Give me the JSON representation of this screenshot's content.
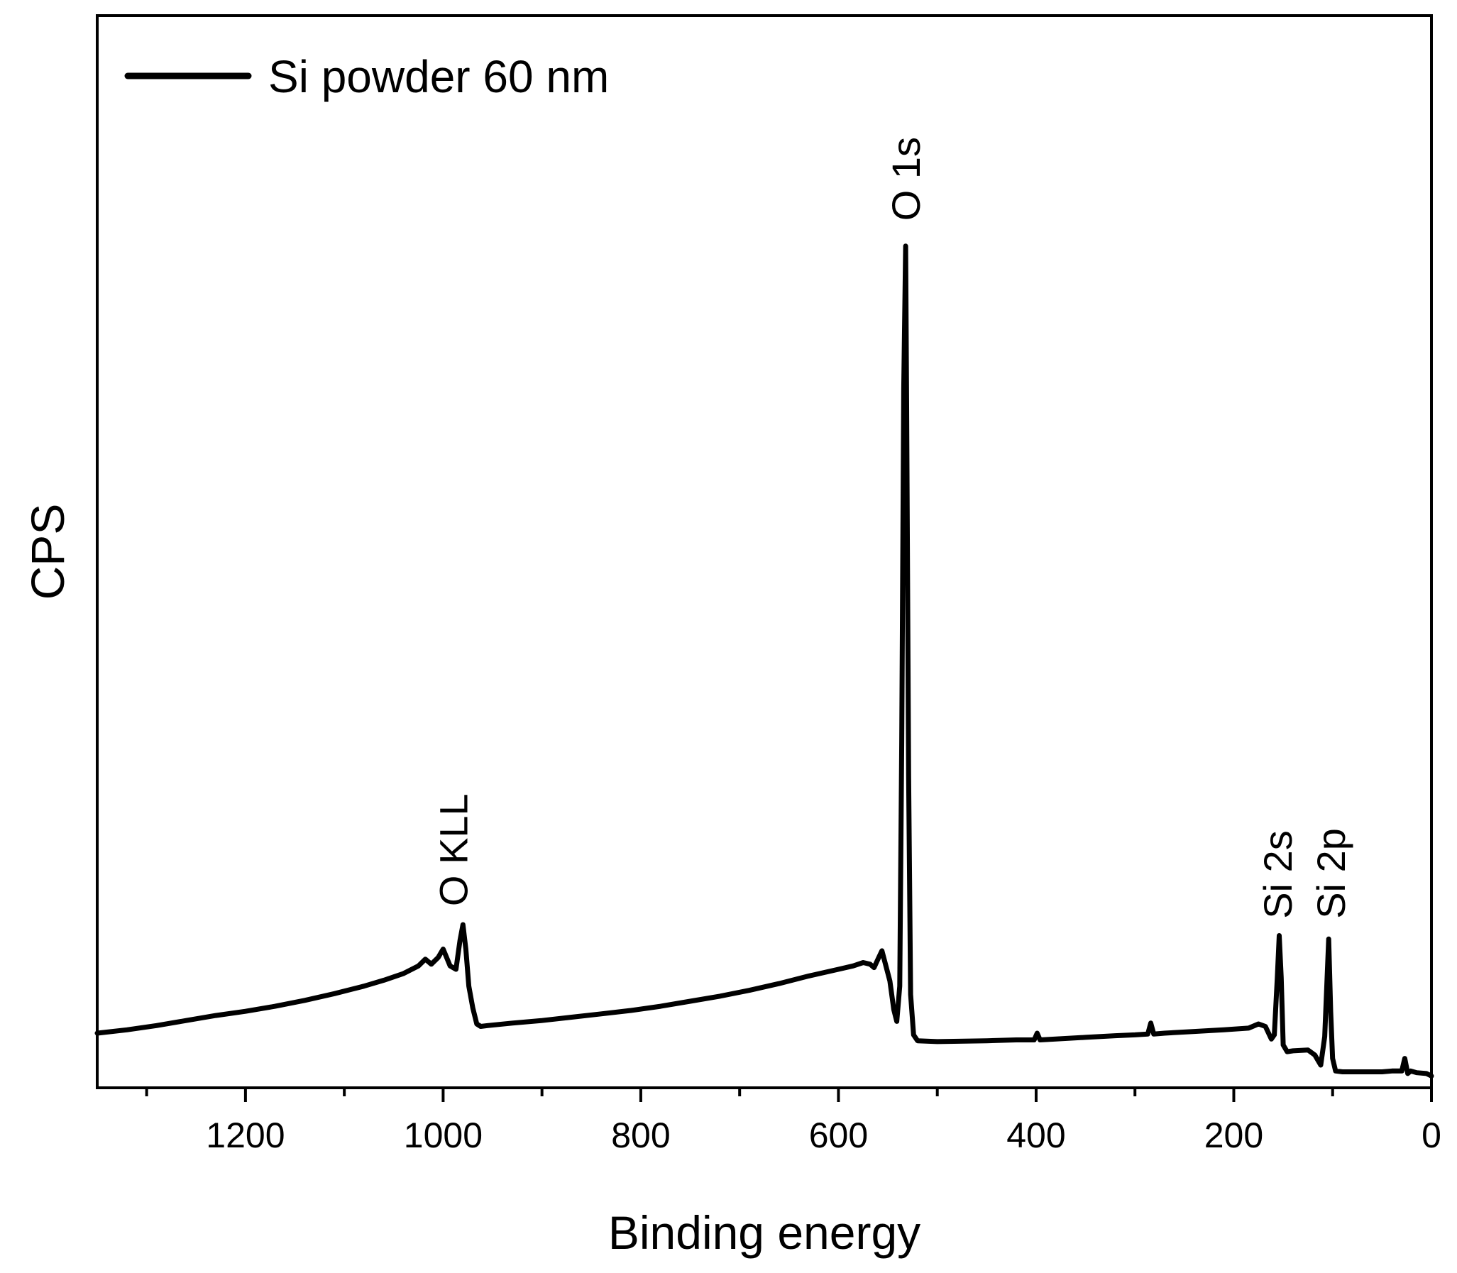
{
  "chart_data": {
    "type": "line",
    "title": "",
    "xlabel": "Binding energy",
    "ylabel": "CPS",
    "xlim": [
      1350,
      0
    ],
    "ylim": [
      0,
      100
    ],
    "x_reversed": true,
    "x_ticks": [
      1200,
      1000,
      800,
      600,
      400,
      200,
      0
    ],
    "x_tick_labels": [
      "1200",
      "1000",
      "800",
      "600",
      "400",
      "200",
      "0"
    ],
    "x_minor_ticks": [
      1300,
      1100,
      900,
      700,
      500,
      300,
      100
    ],
    "y_ticks_shown": false,
    "grid": false,
    "legend": {
      "position": "top-left",
      "entries": [
        {
          "name": "Si powder 60 nm",
          "color": "#000000"
        }
      ]
    },
    "series": [
      {
        "name": "Si powder 60 nm",
        "color": "#000000",
        "x": [
          1350,
          1320,
          1290,
          1260,
          1230,
          1200,
          1170,
          1140,
          1110,
          1080,
          1060,
          1040,
          1025,
          1018,
          1012,
          1005,
          1000,
          993,
          987,
          983,
          980,
          977,
          974,
          970,
          966,
          962,
          955,
          930,
          900,
          870,
          840,
          810,
          780,
          750,
          720,
          690,
          660,
          630,
          600,
          585,
          575,
          568,
          564,
          560,
          556,
          552,
          548,
          544,
          541,
          538,
          536,
          534,
          532,
          531,
          529,
          527,
          524,
          520,
          500,
          450,
          420,
          402,
          399,
          396,
          380,
          350,
          320,
          300,
          287,
          284,
          281,
          270,
          240,
          210,
          185,
          175,
          168,
          162,
          159,
          156,
          154,
          152,
          150,
          146,
          140,
          125,
          118,
          112,
          108,
          104,
          102,
          100,
          97,
          90,
          70,
          50,
          40,
          30,
          27,
          24,
          21,
          15,
          5,
          0
        ],
        "y": [
          5.4,
          5.8,
          6.3,
          6.9,
          7.5,
          8.0,
          8.6,
          9.3,
          10.1,
          11.0,
          11.7,
          12.5,
          13.4,
          14.2,
          13.6,
          14.4,
          15.4,
          13.4,
          13.0,
          16.4,
          18.3,
          15.4,
          11.0,
          8.4,
          6.5,
          6.2,
          6.3,
          6.6,
          6.9,
          7.3,
          7.7,
          8.1,
          8.6,
          9.2,
          9.8,
          10.5,
          11.3,
          12.2,
          13.0,
          13.4,
          13.8,
          13.6,
          13.2,
          14.2,
          15.2,
          13.4,
          11.6,
          8.2,
          6.8,
          11.0,
          40.0,
          82.0,
          99.0,
          80.0,
          36.0,
          10.0,
          5.2,
          4.5,
          4.4,
          4.5,
          4.6,
          4.6,
          5.4,
          4.6,
          4.7,
          4.9,
          5.1,
          5.2,
          5.3,
          6.6,
          5.3,
          5.4,
          5.6,
          5.8,
          6.0,
          6.5,
          6.2,
          4.7,
          5.2,
          12.0,
          17.0,
          12.0,
          4.0,
          3.2,
          3.3,
          3.4,
          2.8,
          1.6,
          5.0,
          16.6,
          8.0,
          2.4,
          0.9,
          0.8,
          0.8,
          0.8,
          0.9,
          0.9,
          2.4,
          0.6,
          0.9,
          0.7,
          0.6,
          0.3
        ]
      }
    ],
    "annotations": [
      {
        "text": "O KLL",
        "x": 990,
        "y": 20.5
      },
      {
        "text": "O 1s",
        "x": 532,
        "y": 102.0
      },
      {
        "text": "Si 2s",
        "x": 156,
        "y": 19.0
      },
      {
        "text": "Si 2p",
        "x": 102,
        "y": 19.0
      }
    ]
  }
}
